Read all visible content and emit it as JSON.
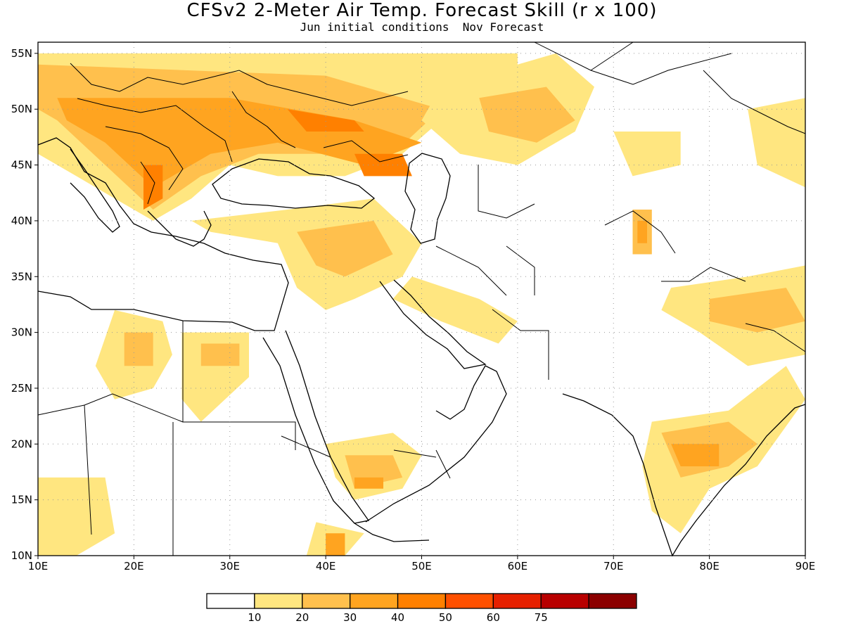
{
  "title": "CFSv2 2-Meter Air Temp. Forecast Skill (r x 100)",
  "subtitle": "Jun initial conditions  Nov Forecast",
  "map": {
    "lon_range": [
      10,
      90
    ],
    "lat_range": [
      10,
      56
    ],
    "x_ticks": [
      {
        "value": 10,
        "label": "10E"
      },
      {
        "value": 20,
        "label": "20E"
      },
      {
        "value": 30,
        "label": "30E"
      },
      {
        "value": 40,
        "label": "40E"
      },
      {
        "value": 50,
        "label": "50E"
      },
      {
        "value": 60,
        "label": "60E"
      },
      {
        "value": 70,
        "label": "70E"
      },
      {
        "value": 80,
        "label": "80E"
      },
      {
        "value": 90,
        "label": "90E"
      }
    ],
    "y_ticks": [
      {
        "value": 10,
        "label": "10N"
      },
      {
        "value": 15,
        "label": "15N"
      },
      {
        "value": 20,
        "label": "20N"
      },
      {
        "value": 25,
        "label": "25N"
      },
      {
        "value": 30,
        "label": "30N"
      },
      {
        "value": 35,
        "label": "35N"
      },
      {
        "value": 40,
        "label": "40N"
      },
      {
        "value": 45,
        "label": "45N"
      },
      {
        "value": 50,
        "label": "50N"
      },
      {
        "value": 55,
        "label": "55N"
      }
    ],
    "grid": "dotted",
    "skill_regions": [
      {
        "level": 1,
        "points": [
          [
            10,
            55
          ],
          [
            60,
            55
          ],
          [
            60,
            52
          ],
          [
            52,
            49
          ],
          [
            48,
            46
          ],
          [
            42,
            44
          ],
          [
            35,
            44
          ],
          [
            30,
            45
          ],
          [
            26,
            42
          ],
          [
            22,
            40
          ],
          [
            18,
            42
          ],
          [
            14,
            44
          ],
          [
            10,
            46
          ]
        ]
      },
      {
        "level": 2,
        "points": [
          [
            10,
            54
          ],
          [
            40,
            53
          ],
          [
            52,
            50
          ],
          [
            47,
            46
          ],
          [
            40,
            46
          ],
          [
            33,
            46
          ],
          [
            27,
            44
          ],
          [
            22,
            41
          ],
          [
            17,
            45
          ],
          [
            12,
            49
          ],
          [
            10,
            50
          ]
        ]
      },
      {
        "level": 3,
        "points": [
          [
            12,
            51
          ],
          [
            30,
            51
          ],
          [
            43,
            49
          ],
          [
            50,
            47
          ],
          [
            44,
            45
          ],
          [
            35,
            47
          ],
          [
            28,
            46
          ],
          [
            22,
            43
          ],
          [
            17,
            47
          ],
          [
            13,
            49
          ]
        ]
      },
      {
        "level": 4,
        "points": [
          [
            36,
            50
          ],
          [
            43,
            49
          ],
          [
            44,
            48
          ],
          [
            38,
            48
          ]
        ]
      },
      {
        "level": 4,
        "points": [
          [
            43,
            46
          ],
          [
            48,
            46
          ],
          [
            49,
            44
          ],
          [
            44,
            44
          ]
        ]
      },
      {
        "level": 4,
        "points": [
          [
            21,
            45
          ],
          [
            23,
            45
          ],
          [
            23,
            42
          ],
          [
            21,
            41
          ]
        ]
      },
      {
        "level": 1,
        "points": [
          [
            52,
            52
          ],
          [
            60,
            54
          ],
          [
            64,
            55
          ],
          [
            68,
            52
          ],
          [
            66,
            48
          ],
          [
            60,
            45
          ],
          [
            54,
            46
          ],
          [
            50,
            49
          ]
        ]
      },
      {
        "level": 2,
        "points": [
          [
            56,
            51
          ],
          [
            63,
            52
          ],
          [
            66,
            49
          ],
          [
            62,
            47
          ],
          [
            57,
            48
          ]
        ]
      },
      {
        "level": 1,
        "points": [
          [
            26,
            40
          ],
          [
            36,
            41
          ],
          [
            45,
            42
          ],
          [
            50,
            38
          ],
          [
            48,
            35
          ],
          [
            43,
            33
          ],
          [
            40,
            32
          ],
          [
            37,
            34
          ],
          [
            35,
            38
          ],
          [
            28,
            39
          ]
        ]
      },
      {
        "level": 2,
        "points": [
          [
            37,
            39
          ],
          [
            45,
            40
          ],
          [
            47,
            37
          ],
          [
            42,
            35
          ],
          [
            39,
            36
          ]
        ]
      },
      {
        "level": 1,
        "points": [
          [
            49,
            35
          ],
          [
            56,
            33
          ],
          [
            60,
            31
          ],
          [
            58,
            29
          ],
          [
            52,
            31
          ],
          [
            47,
            33
          ]
        ]
      },
      {
        "level": 1,
        "points": [
          [
            18,
            32
          ],
          [
            23,
            31
          ],
          [
            24,
            28
          ],
          [
            22,
            25
          ],
          [
            18,
            24
          ],
          [
            16,
            27
          ]
        ]
      },
      {
        "level": 2,
        "points": [
          [
            19,
            30
          ],
          [
            22,
            30
          ],
          [
            22,
            27
          ],
          [
            19,
            27
          ]
        ]
      },
      {
        "level": 1,
        "points": [
          [
            25,
            30
          ],
          [
            32,
            30
          ],
          [
            32,
            26
          ],
          [
            27,
            22
          ],
          [
            25,
            24
          ]
        ]
      },
      {
        "level": 2,
        "points": [
          [
            27,
            29
          ],
          [
            31,
            29
          ],
          [
            31,
            27
          ],
          [
            27,
            27
          ]
        ]
      },
      {
        "level": 1,
        "points": [
          [
            40,
            20
          ],
          [
            47,
            21
          ],
          [
            50,
            19
          ],
          [
            48,
            16
          ],
          [
            43,
            15
          ],
          [
            41,
            17
          ]
        ]
      },
      {
        "level": 2,
        "points": [
          [
            42,
            19
          ],
          [
            47,
            19
          ],
          [
            48,
            17
          ],
          [
            43,
            16
          ]
        ]
      },
      {
        "level": 3,
        "points": [
          [
            43,
            17
          ],
          [
            46,
            17
          ],
          [
            46,
            16
          ],
          [
            43,
            16
          ]
        ]
      },
      {
        "level": 1,
        "points": [
          [
            39,
            13
          ],
          [
            44,
            12
          ],
          [
            42,
            10
          ],
          [
            38,
            10
          ]
        ]
      },
      {
        "level": 3,
        "points": [
          [
            40,
            12
          ],
          [
            42,
            12
          ],
          [
            42,
            10
          ],
          [
            40,
            10
          ]
        ]
      },
      {
        "level": 1,
        "points": [
          [
            10,
            17
          ],
          [
            17,
            17
          ],
          [
            18,
            12
          ],
          [
            14,
            10
          ],
          [
            10,
            10
          ]
        ]
      },
      {
        "level": 1,
        "points": [
          [
            76,
            34
          ],
          [
            84,
            35
          ],
          [
            90,
            36
          ],
          [
            90,
            28
          ],
          [
            84,
            27
          ],
          [
            79,
            30
          ],
          [
            75,
            32
          ]
        ]
      },
      {
        "level": 2,
        "points": [
          [
            80,
            33
          ],
          [
            88,
            34
          ],
          [
            90,
            31
          ],
          [
            85,
            30
          ],
          [
            80,
            31
          ]
        ]
      },
      {
        "level": 1,
        "points": [
          [
            74,
            22
          ],
          [
            82,
            23
          ],
          [
            88,
            27
          ],
          [
            90,
            24
          ],
          [
            85,
            18
          ],
          [
            80,
            16
          ],
          [
            77,
            12
          ],
          [
            74,
            14
          ],
          [
            73,
            18
          ]
        ]
      },
      {
        "level": 2,
        "points": [
          [
            75,
            21
          ],
          [
            82,
            22
          ],
          [
            85,
            20
          ],
          [
            82,
            18
          ],
          [
            77,
            17
          ]
        ]
      },
      {
        "level": 3,
        "points": [
          [
            76,
            20
          ],
          [
            81,
            20
          ],
          [
            81,
            18
          ],
          [
            77,
            18
          ]
        ]
      },
      {
        "level": 2,
        "points": [
          [
            72,
            41
          ],
          [
            74,
            41
          ],
          [
            74,
            37
          ],
          [
            72,
            37
          ]
        ]
      },
      {
        "level": 3,
        "points": [
          [
            72.5,
            40
          ],
          [
            73.5,
            40
          ],
          [
            73.5,
            38
          ],
          [
            72.5,
            38
          ]
        ]
      },
      {
        "level": 1,
        "points": [
          [
            70,
            48
          ],
          [
            77,
            48
          ],
          [
            77,
            45
          ],
          [
            72,
            44
          ]
        ]
      },
      {
        "level": 1,
        "points": [
          [
            84,
            50
          ],
          [
            90,
            51
          ],
          [
            90,
            43
          ],
          [
            85,
            45
          ]
        ]
      }
    ]
  },
  "colorbar": {
    "levels": [
      {
        "label": "",
        "color": "#ffffff"
      },
      {
        "label": "10",
        "color": "#ffe680"
      },
      {
        "label": "20",
        "color": "#ffc04d"
      },
      {
        "label": "30",
        "color": "#ffa420"
      },
      {
        "label": "40",
        "color": "#ff8000"
      },
      {
        "label": "50",
        "color": "#ff5000"
      },
      {
        "label": "60",
        "color": "#e62000"
      },
      {
        "label": "75",
        "color": "#b80000"
      },
      {
        "label": "",
        "color": "#8b0000"
      }
    ]
  }
}
